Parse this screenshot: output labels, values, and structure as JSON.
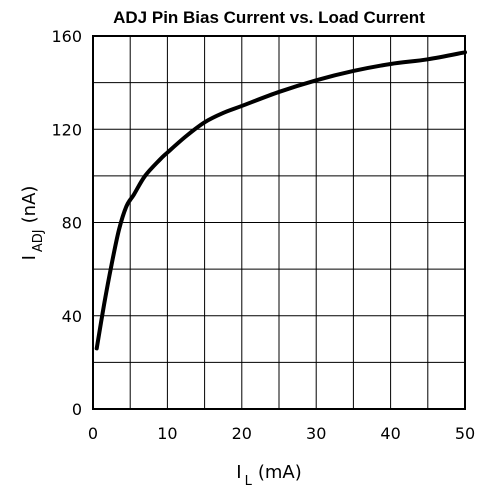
{
  "chart_data": {
    "type": "line",
    "title": "ADJ Pin Bias Current vs. Load Current",
    "xlabel": {
      "main": "I",
      "sub": "L",
      "unit": "(mA)"
    },
    "ylabel": {
      "main": "I",
      "sub": "ADJ",
      "unit": "(nA)"
    },
    "xlim": [
      0,
      50
    ],
    "ylim": [
      0,
      160
    ],
    "x_ticks": [
      0,
      10,
      20,
      30,
      40,
      50
    ],
    "y_ticks": [
      0,
      40,
      80,
      120,
      160
    ],
    "x_tick_labels": [
      "0",
      "10",
      "20",
      "30",
      "40",
      "50"
    ],
    "y_tick_labels": [
      "0",
      "40",
      "80",
      "120",
      "160"
    ],
    "grid": true,
    "grid_x_step": 5,
    "grid_y_step": 20,
    "colors": {
      "line": "#000000",
      "grid": "#000000"
    },
    "series": [
      {
        "points": [
          [
            0.5,
            26
          ],
          [
            1.5,
            45
          ],
          [
            2.5,
            62
          ],
          [
            3.5,
            77
          ],
          [
            4.5,
            87
          ],
          [
            5.5,
            92
          ],
          [
            7,
            100
          ],
          [
            9,
            107
          ],
          [
            10,
            110
          ],
          [
            12.5,
            117
          ],
          [
            15,
            123
          ],
          [
            17.5,
            127
          ],
          [
            20,
            130
          ],
          [
            25,
            136
          ],
          [
            30,
            141
          ],
          [
            35,
            145
          ],
          [
            40,
            148
          ],
          [
            45,
            150
          ],
          [
            50,
            153
          ]
        ]
      }
    ]
  }
}
